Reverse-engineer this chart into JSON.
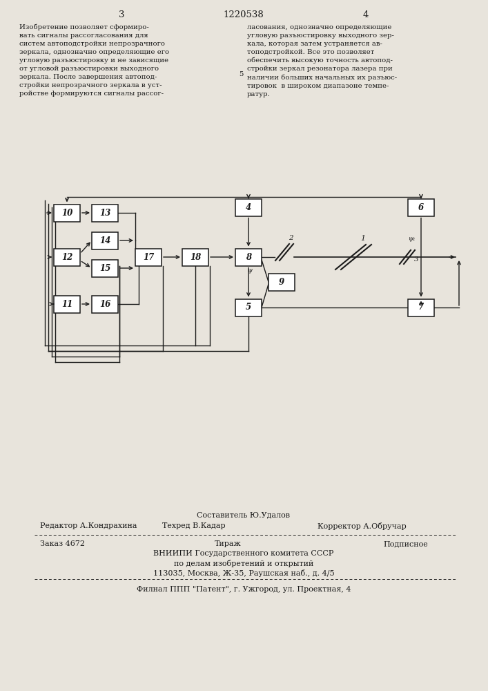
{
  "page_title": "1220538",
  "page_num_left": "3",
  "page_num_right": "4",
  "text_left": "Изобретение позволяет сформиро-\nвать сигналы рассогласования для\nсистем автоподстройки непрозрачного\nзеркала, однозначно определяющие его\nугловую разъюстировку и не зависящие\nот угловой разъюстировки выходного\nзеркала. После завершения автопод-\nстройки непрозрачного зеркала в уст-\nройстве формируются сигналы рассог-",
  "text_right": "ласования, однозначно определяющие\nугловую разъюстировку выходного зер-\nкала, которая затем устраняется ав-\nтоподстройкой. Все это позволяет\nобеспечить высокую точность автопод-\nстройки зеркал резонатора лазера при\nналичии больших начальных их разъюс-\nтировок  в широком диапазоне темпе-\nратур.",
  "line5_label": "5",
  "footer_line1": "Составитель Ю.Удалов",
  "footer_editor": "Редактор А.Кондрахина",
  "footer_tech": "Техред В.Кадар",
  "footer_corrector": "Корректор А.Обручар",
  "footer_order": "Заказ 4672",
  "footer_tirazh": "Тираж",
  "footer_podpisnoe": "Подписное",
  "footer_org1": "ВНИИПИ Государственного комитета СССР",
  "footer_org2": "по делам изобретений и открытий",
  "footer_org3": "113035, Москва, Ж-35, Раушская наб., д. 4/5",
  "footer_branch": "Филнал ППП \"Патент\", г. Ужгород, ул. Проектная, 4",
  "bg_color": "#e8e4dc",
  "box_color": "#1a1a1a",
  "text_color": "#1a1a1a"
}
